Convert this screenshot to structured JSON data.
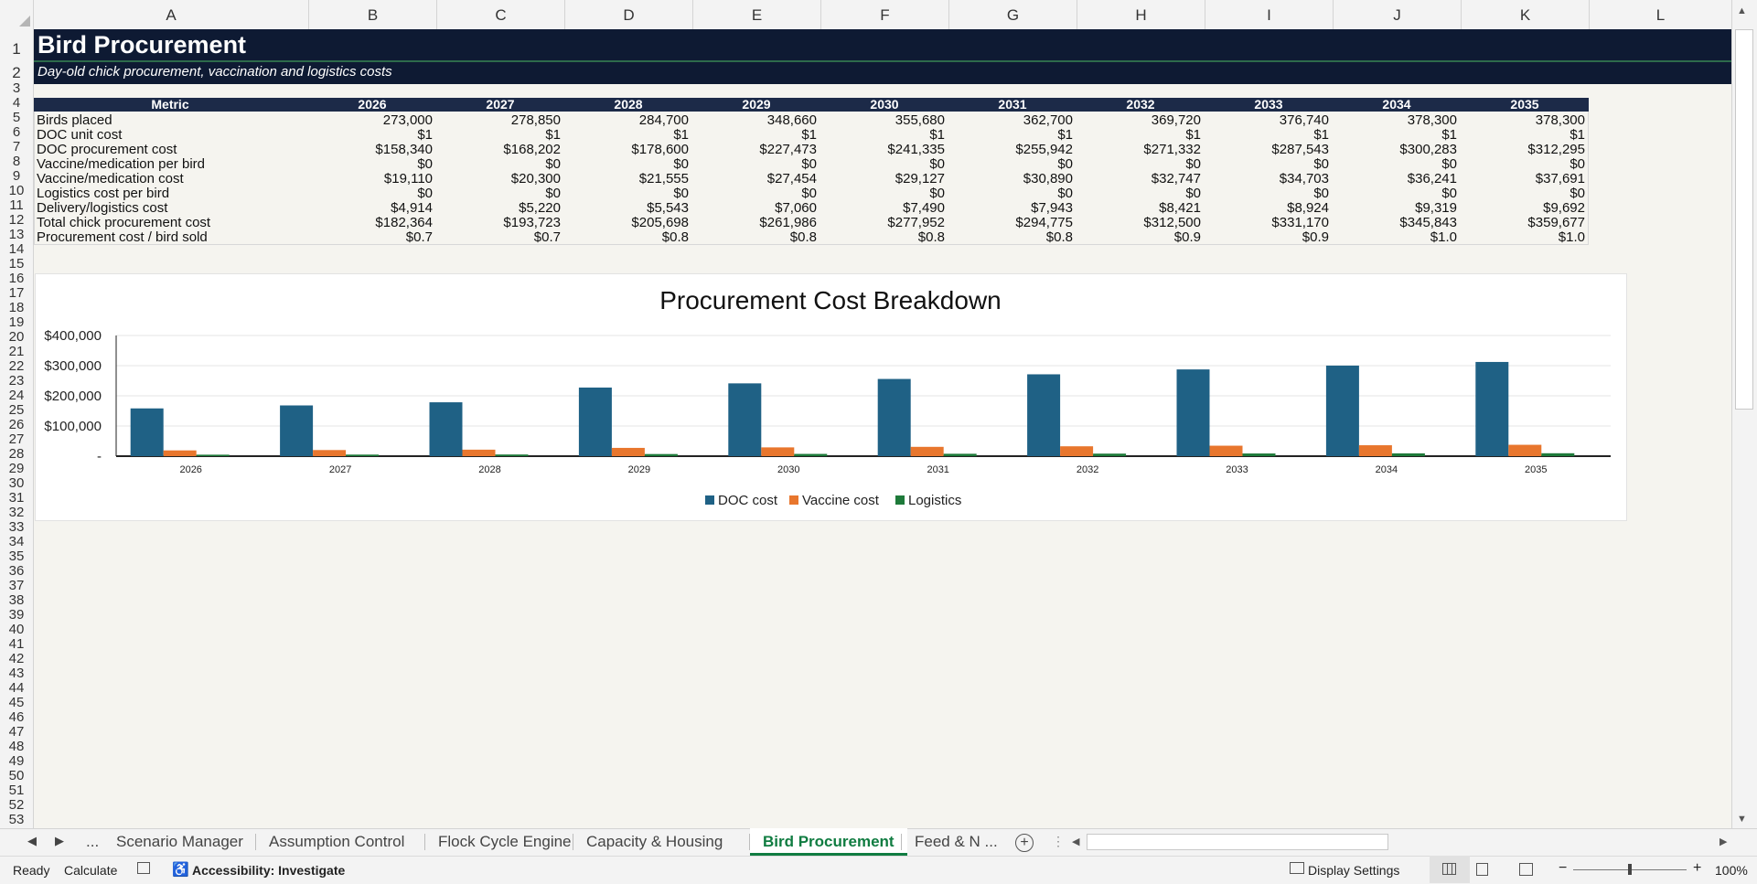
{
  "sheet": {
    "columns": [
      "A",
      "B",
      "C",
      "D",
      "E",
      "F",
      "G",
      "H",
      "I",
      "J",
      "K",
      "L"
    ],
    "rows": [
      "1",
      "2",
      "3",
      "4",
      "5",
      "6",
      "7",
      "8",
      "9",
      "10",
      "11",
      "12",
      "13",
      "14",
      "15",
      "16",
      "17",
      "18",
      "19",
      "20",
      "21",
      "22",
      "23",
      "24",
      "25",
      "26",
      "27",
      "28",
      "29",
      "30",
      "31",
      "32",
      "33",
      "34",
      "35",
      "36",
      "37",
      "38",
      "39",
      "40",
      "41",
      "42",
      "43",
      "44",
      "45",
      "46",
      "47",
      "48",
      "49",
      "50",
      "51",
      "52",
      "53"
    ]
  },
  "title": "Bird Procurement",
  "subtitle": "Day-old chick procurement, vaccination and logistics costs",
  "table": {
    "header": [
      "Metric",
      "2026",
      "2027",
      "2028",
      "2029",
      "2030",
      "2031",
      "2032",
      "2033",
      "2034",
      "2035"
    ],
    "rows": [
      {
        "label": "Birds placed",
        "values": [
          "273,000",
          "278,850",
          "284,700",
          "348,660",
          "355,680",
          "362,700",
          "369,720",
          "376,740",
          "378,300",
          "378,300"
        ]
      },
      {
        "label": "DOC unit cost",
        "values": [
          "$1",
          "$1",
          "$1",
          "$1",
          "$1",
          "$1",
          "$1",
          "$1",
          "$1",
          "$1"
        ]
      },
      {
        "label": "DOC procurement cost",
        "values": [
          "$158,340",
          "$168,202",
          "$178,600",
          "$227,473",
          "$241,335",
          "$255,942",
          "$271,332",
          "$287,543",
          "$300,283",
          "$312,295"
        ]
      },
      {
        "label": "Vaccine/medication per bird",
        "values": [
          "$0",
          "$0",
          "$0",
          "$0",
          "$0",
          "$0",
          "$0",
          "$0",
          "$0",
          "$0"
        ]
      },
      {
        "label": "Vaccine/medication cost",
        "values": [
          "$19,110",
          "$20,300",
          "$21,555",
          "$27,454",
          "$29,127",
          "$30,890",
          "$32,747",
          "$34,703",
          "$36,241",
          "$37,691"
        ]
      },
      {
        "label": "Logistics cost per bird",
        "values": [
          "$0",
          "$0",
          "$0",
          "$0",
          "$0",
          "$0",
          "$0",
          "$0",
          "$0",
          "$0"
        ]
      },
      {
        "label": "Delivery/logistics cost",
        "values": [
          "$4,914",
          "$5,220",
          "$5,543",
          "$7,060",
          "$7,490",
          "$7,943",
          "$8,421",
          "$8,924",
          "$9,319",
          "$9,692"
        ]
      },
      {
        "label": "Total chick procurement cost",
        "values": [
          "$182,364",
          "$193,723",
          "$205,698",
          "$261,986",
          "$277,952",
          "$294,775",
          "$312,500",
          "$331,170",
          "$345,843",
          "$359,677"
        ]
      },
      {
        "label": "Procurement cost / bird sold",
        "values": [
          "$0.7",
          "$0.7",
          "$0.8",
          "$0.8",
          "$0.8",
          "$0.8",
          "$0.9",
          "$0.9",
          "$1.0",
          "$1.0"
        ]
      }
    ]
  },
  "chart_data": {
    "type": "bar",
    "title": "Procurement Cost Breakdown",
    "categories": [
      "2026",
      "2027",
      "2028",
      "2029",
      "2030",
      "2031",
      "2032",
      "2033",
      "2034",
      "2035"
    ],
    "series": [
      {
        "name": "DOC cost",
        "color": "#1f6185",
        "values": [
          158340,
          168202,
          178600,
          227473,
          241335,
          255942,
          271332,
          287543,
          300283,
          312295
        ]
      },
      {
        "name": "Vaccine cost",
        "color": "#e8762d",
        "values": [
          19110,
          20300,
          21555,
          27454,
          29127,
          30890,
          32747,
          34703,
          36241,
          37691
        ]
      },
      {
        "name": "Logistics",
        "color": "#1e7a3a",
        "values": [
          4914,
          5220,
          5543,
          7060,
          7490,
          7943,
          8421,
          8924,
          9319,
          9692
        ]
      }
    ],
    "y_ticks": [
      "$400,000",
      "$300,000",
      "$200,000",
      "$100,000",
      "-"
    ],
    "ylim": [
      0,
      400000
    ],
    "grid": true,
    "legend_position": "bottom"
  },
  "tabs": {
    "overflow": "...",
    "items": [
      "Scenario Manager",
      "Assumption Control",
      "Flock Cycle Engine",
      "Capacity & Housing",
      "Bird Procurement",
      "Feed & N ..."
    ],
    "active": "Bird Procurement",
    "add_icon": "plus-circle-icon"
  },
  "status": {
    "ready": "Ready",
    "calculate": "Calculate",
    "accessibility": "Accessibility: Investigate",
    "display_settings": "Display Settings",
    "zoom": "100%",
    "minus": "−",
    "plus": "+"
  }
}
